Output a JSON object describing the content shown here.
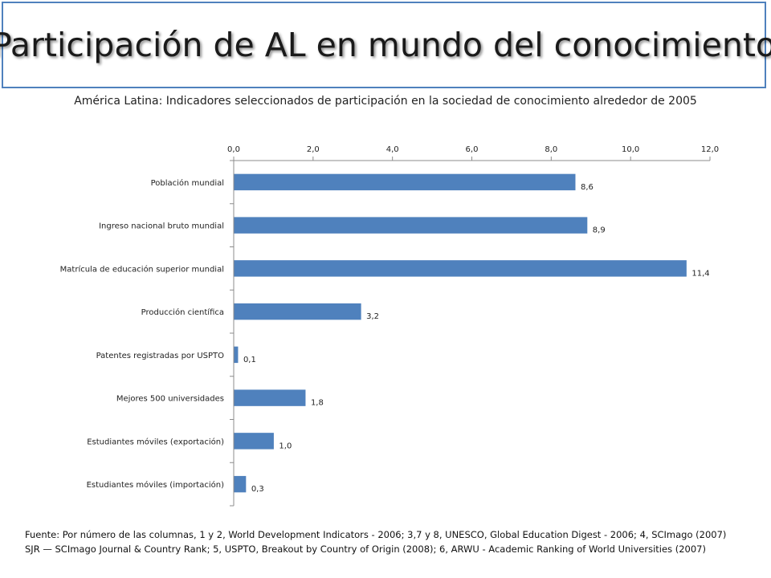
{
  "title": "Participación de AL en mundo del conocimiento",
  "chart_data": {
    "type": "bar",
    "orientation": "horizontal",
    "title": "América Latina: Indicadores seleccionados de participación en la sociedad de conocimiento alrededor de 2005",
    "xlim": [
      0,
      12
    ],
    "x_ticks": [
      "0,0",
      "2,0",
      "4,0",
      "6,0",
      "8,0",
      "10,0",
      "12,0"
    ],
    "x_axis_position": "top",
    "grid": false,
    "categories": [
      "Población mundial",
      "Ingreso nacional bruto mundial",
      "Matrícula de educación superior mundial",
      "Producción científica",
      "Patentes registradas por USPTO",
      "Mejores 500 universidades",
      "Estudiantes móviles (exportación)",
      "Estudiantes móviles (importación)"
    ],
    "values": [
      8.6,
      8.9,
      11.4,
      3.2,
      0.1,
      1.8,
      1.0,
      0.3
    ],
    "value_labels": [
      "8,6",
      "8,9",
      "11,4",
      "3,2",
      "0,1",
      "1,8",
      "1,0",
      "0,3"
    ],
    "bar_color": "#4f81bd"
  },
  "footnote": {
    "line1": "Fuente: Por número de las columnas, 1 y 2, World Development Indicators - 2006; 3,7 y 8, UNESCO, Global Education Digest - 2006; 4, SCImago (2007)",
    "line2": "SJR — SCImago Journal & Country Rank; 5, USPTO, Breakout by Country of Origin (2008); 6, ARWU - Academic Ranking of World Universities (2007)"
  }
}
